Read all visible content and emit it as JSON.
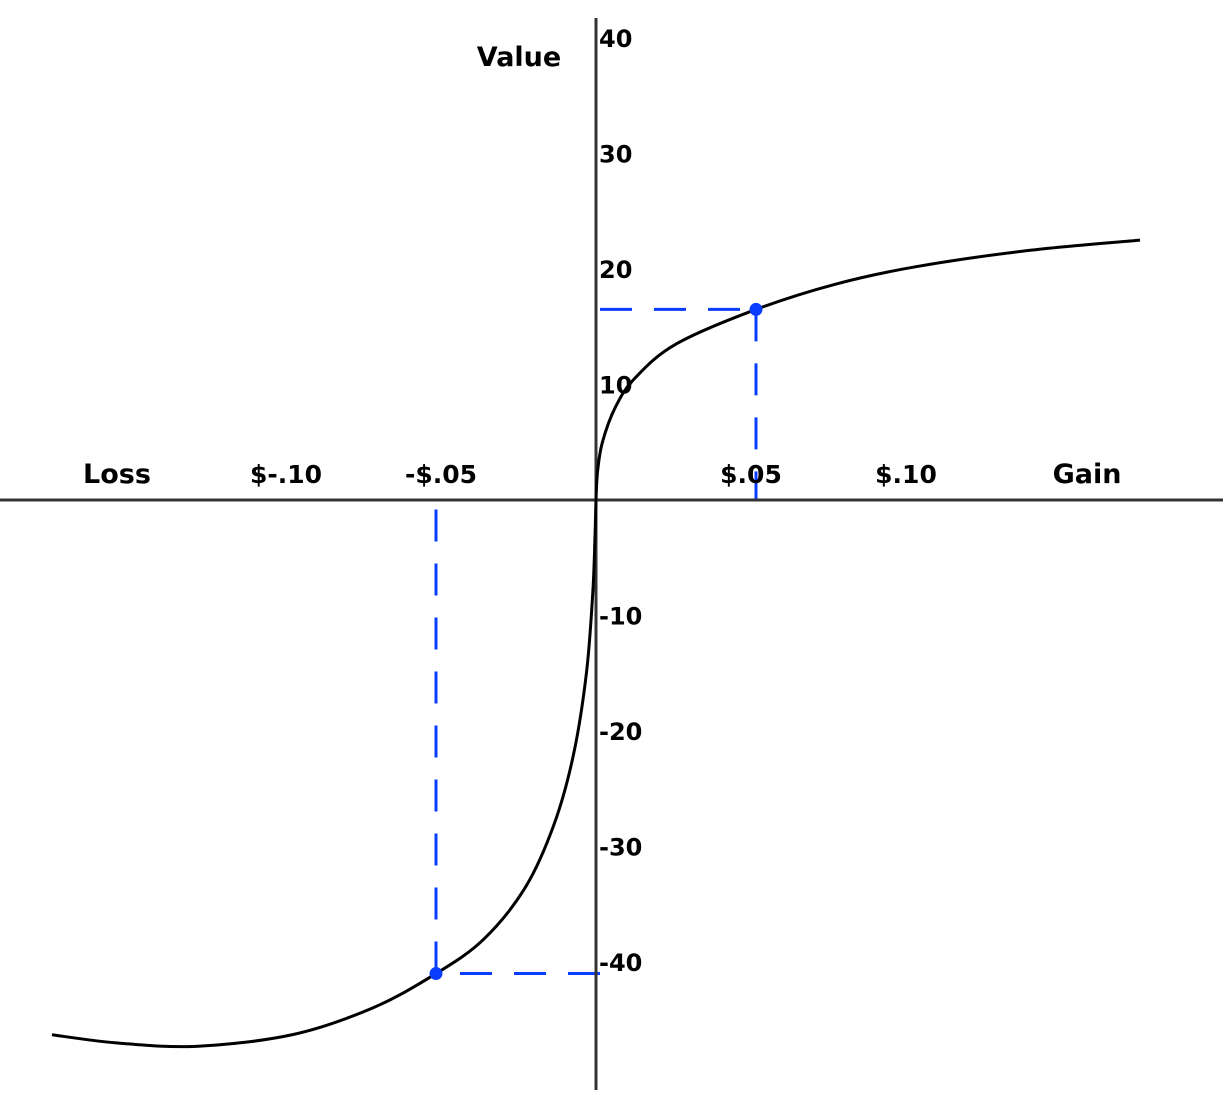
{
  "chart_data": {
    "type": "line",
    "title": "",
    "xlabel_left": "Loss",
    "xlabel_right": "Gain",
    "ylabel": "Value",
    "x_ticks": [
      {
        "value": -0.1,
        "label": "$-.10"
      },
      {
        "value": -0.05,
        "label": "-$.05"
      },
      {
        "value": 0.05,
        "label": "$.05"
      },
      {
        "value": 0.1,
        "label": "$.10"
      }
    ],
    "y_ticks": [
      {
        "value": 40,
        "label": "40"
      },
      {
        "value": 30,
        "label": "30"
      },
      {
        "value": 20,
        "label": "20"
      },
      {
        "value": 10,
        "label": "10"
      },
      {
        "value": -10,
        "label": "-10"
      },
      {
        "value": -20,
        "label": "-20"
      },
      {
        "value": -30,
        "label": "-30"
      },
      {
        "value": -40,
        "label": "-40"
      }
    ],
    "xlim": [
      -0.18,
      0.19
    ],
    "ylim": [
      -51,
      42
    ],
    "grid": false,
    "curve_color": "#000000",
    "highlight_color": "#0a3cff",
    "series": [
      {
        "points": [
          [
            -0.17,
            -46.3
          ],
          [
            -0.15,
            -47
          ],
          [
            -0.125,
            -47.3
          ],
          [
            -0.095,
            -46.3
          ],
          [
            -0.07,
            -44
          ],
          [
            -0.05,
            -41
          ],
          [
            -0.035,
            -38
          ],
          [
            -0.022,
            -33.5
          ],
          [
            -0.013,
            -28
          ],
          [
            -0.007,
            -22
          ],
          [
            -0.003,
            -15
          ],
          [
            -0.001,
            -8
          ],
          [
            -0.0003,
            -3
          ],
          [
            0,
            0
          ],
          [
            0.0005,
            2.5
          ],
          [
            0.002,
            5
          ],
          [
            0.006,
            8
          ],
          [
            0.012,
            10.5
          ],
          [
            0.025,
            13.5
          ],
          [
            0.05,
            16.5
          ],
          [
            0.075,
            18.7
          ],
          [
            0.1,
            20.2
          ],
          [
            0.135,
            21.6
          ],
          [
            0.17,
            22.5
          ]
        ]
      }
    ],
    "highlighted_points": [
      {
        "x": 0.05,
        "y": 16.5
      },
      {
        "x": -0.05,
        "y": -41
      }
    ]
  }
}
